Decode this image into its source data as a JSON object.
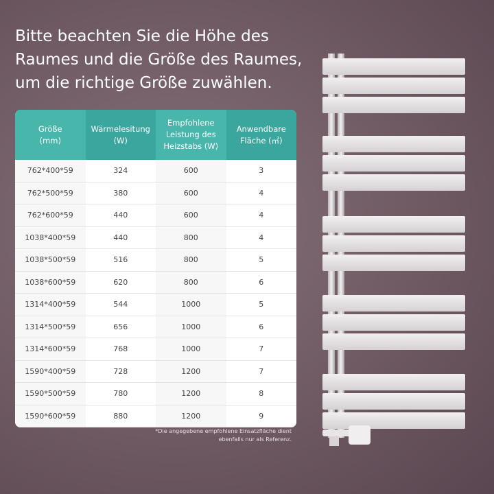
{
  "title": "Bitte beachten Sie die Höhe des\nRaumes und die Größe des Raumes,\num die richtige Größe zuwählen.",
  "table": {
    "headers": [
      "Größe\n(mm)",
      "Wärmelesitung\n(W)",
      "Empfohlene\nLeistung des\nHeizstabs  (W)",
      "Anwendbare\nFläche  (㎡)"
    ],
    "rows": [
      [
        "762*400*59",
        "324",
        "600",
        "3"
      ],
      [
        "762*500*59",
        "380",
        "600",
        "4"
      ],
      [
        "762*600*59",
        "440",
        "600",
        "4"
      ],
      [
        "1038*400*59",
        "440",
        "800",
        "4"
      ],
      [
        "1038*500*59",
        "516",
        "800",
        "5"
      ],
      [
        "1038*600*59",
        "620",
        "800",
        "6"
      ],
      [
        "1314*400*59",
        "544",
        "1000",
        "5"
      ],
      [
        "1314*500*59",
        "656",
        "1000",
        "6"
      ],
      [
        "1314*600*59",
        "768",
        "1000",
        "7"
      ],
      [
        "1590*400*59",
        "728",
        "1200",
        "7"
      ],
      [
        "1590*500*59",
        "780",
        "1200",
        "8"
      ],
      [
        "1590*600*59",
        "880",
        "1200",
        "9"
      ]
    ]
  },
  "footnote": "*Die angegebene empfohlene Einsatzfläche dient\nebenfalls nur als Referenz."
}
